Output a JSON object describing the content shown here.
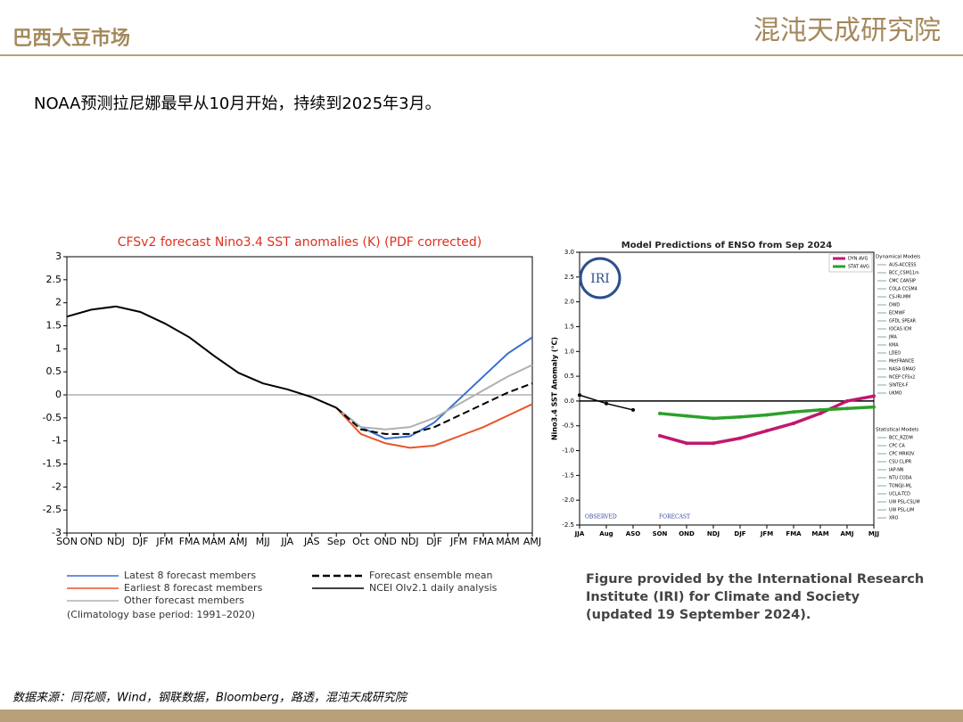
{
  "header": {
    "title": "巴西大豆市场",
    "logo": "混沌天成研究院"
  },
  "subtitle": "NOAA预测拉尼娜最早从10月开始，持续到2025年3月。",
  "source": "数据来源：同花顺，Wind，钢联数据，Bloomberg，路透，混沌天成研究院",
  "chart_data": [
    {
      "type": "line",
      "title": "CFSv2 forecast Nino3.4 SST anomalies (K) (PDF corrected)",
      "categories": [
        "SON",
        "OND",
        "NDJ",
        "DJF",
        "JFM",
        "FMA",
        "MAM",
        "AMJ",
        "MJJ",
        "JJA",
        "JAS",
        "Sep",
        "Oct",
        "OND",
        "NDJ",
        "DJF",
        "JFM",
        "FMA",
        "MAM",
        "AMJ"
      ],
      "ylim": [
        -3,
        3
      ],
      "yticks": [
        -3,
        -2.5,
        -2,
        -1.5,
        -1,
        -0.5,
        0,
        0.5,
        1,
        1.5,
        2,
        2.5,
        3
      ],
      "zero_line": true,
      "series": [
        {
          "name": "Latest 8 forecast members",
          "color": "#3a6fd0",
          "values": [
            null,
            null,
            null,
            null,
            null,
            null,
            null,
            null,
            null,
            null,
            null,
            -0.28,
            -0.7,
            -0.95,
            -0.9,
            -0.6,
            -0.1,
            0.4,
            0.9,
            1.25
          ]
        },
        {
          "name": "Earliest 8 forecast members",
          "color": "#e8542a",
          "values": [
            null,
            null,
            null,
            null,
            null,
            null,
            null,
            null,
            null,
            null,
            null,
            -0.28,
            -0.85,
            -1.05,
            -1.15,
            -1.1,
            -0.9,
            -0.7,
            -0.45,
            -0.2
          ]
        },
        {
          "name": "Other forecast members",
          "color": "#b0b0b0",
          "values": [
            null,
            null,
            null,
            null,
            null,
            null,
            null,
            null,
            null,
            null,
            null,
            -0.28,
            -0.7,
            -0.75,
            -0.7,
            -0.5,
            -0.2,
            0.1,
            0.4,
            0.65
          ]
        },
        {
          "name": "Forecast ensemble mean",
          "color": "#000000",
          "dashed": true,
          "values": [
            null,
            null,
            null,
            null,
            null,
            null,
            null,
            null,
            null,
            null,
            null,
            -0.28,
            -0.75,
            -0.85,
            -0.85,
            -0.7,
            -0.45,
            -0.2,
            0.05,
            0.25
          ]
        },
        {
          "name": "NCEI OIv2.1 daily analysis",
          "color": "#000000",
          "values": [
            1.7,
            1.85,
            1.92,
            1.8,
            1.55,
            1.25,
            0.85,
            0.48,
            0.25,
            0.12,
            -0.05,
            -0.28,
            null,
            null,
            null,
            null,
            null,
            null,
            null,
            null
          ]
        }
      ],
      "note": "(Climatology base period: 1991–2020)"
    },
    {
      "type": "line",
      "title": "Model Predictions of ENSO from Sep 2024",
      "y_label": "Nino3.4 SST Anomaly (°C)",
      "logo": "IRI",
      "categories": [
        "JJA",
        "Aug",
        "ASO",
        "SON",
        "OND",
        "NDJ",
        "DJF",
        "JFM",
        "FMA",
        "MAM",
        "AMJ",
        "MJJ"
      ],
      "ylim": [
        -2.5,
        3
      ],
      "yticks": [
        -2.5,
        {
          "value": -2,
          "label": "-2.0"
        },
        -1.5,
        {
          "value": -1,
          "label": "-1.0"
        },
        -0.5,
        {
          "value": 0,
          "label": "0.0"
        },
        0.5,
        {
          "value": 1,
          "label": "1.0"
        },
        1.5,
        {
          "value": 2,
          "label": "2.0"
        },
        2.5,
        {
          "value": 3,
          "label": "3.0"
        }
      ],
      "zero_line": true,
      "series": [
        {
          "color": "#000000",
          "values": [
            0.12,
            -0.05,
            -0.18,
            null,
            null,
            null,
            null,
            null,
            null,
            null,
            null,
            null
          ]
        },
        {
          "name": "DYN AVG",
          "color": "#c0186e",
          "values": [
            null,
            null,
            null,
            -0.7,
            -0.85,
            -0.85,
            -0.75,
            -0.6,
            -0.45,
            -0.25,
            0,
            0.1
          ]
        },
        {
          "name": "STAT AVG",
          "color": "#2ca02c",
          "values": [
            null,
            null,
            null,
            -0.25,
            -0.3,
            -0.35,
            -0.32,
            -0.28,
            -0.22,
            -0.18,
            -0.15,
            -0.12
          ]
        }
      ],
      "annotations": [
        "OBSERVED",
        "FORECAST"
      ],
      "dynamical_title": "Dynamical Models",
      "dynamical_models": [
        "AUS-ACCESS",
        "BCC_CSM11m",
        "CMC CANSIP",
        "COLA CCSM4",
        "CS-IRI-MM",
        "DWD",
        "ECMWF",
        "GFDL SPEAR",
        "IOCAS ICM",
        "JMA",
        "KMA",
        "LDEO",
        "MetFRANCE",
        "NASA GMAO",
        "NCEP CFSv2",
        "SINTEX-F",
        "UKMO"
      ],
      "statistical_title": "Statistical Models",
      "statistical_models": [
        "BCC_RZDM",
        "CPC CA",
        "CPC MRKOV",
        "CSU CLIPR",
        "IAP-NN",
        "NTU CODA",
        "TONGJI-ML",
        "UCLA-TCD",
        "UW PSL-CSLIM",
        "UW PSL-LIM",
        "XRO"
      ],
      "caption": [
        "Figure provided by the International Research",
        "Institute (IRI) for Climate and Society",
        "(updated 19 September 2024)."
      ]
    }
  ]
}
